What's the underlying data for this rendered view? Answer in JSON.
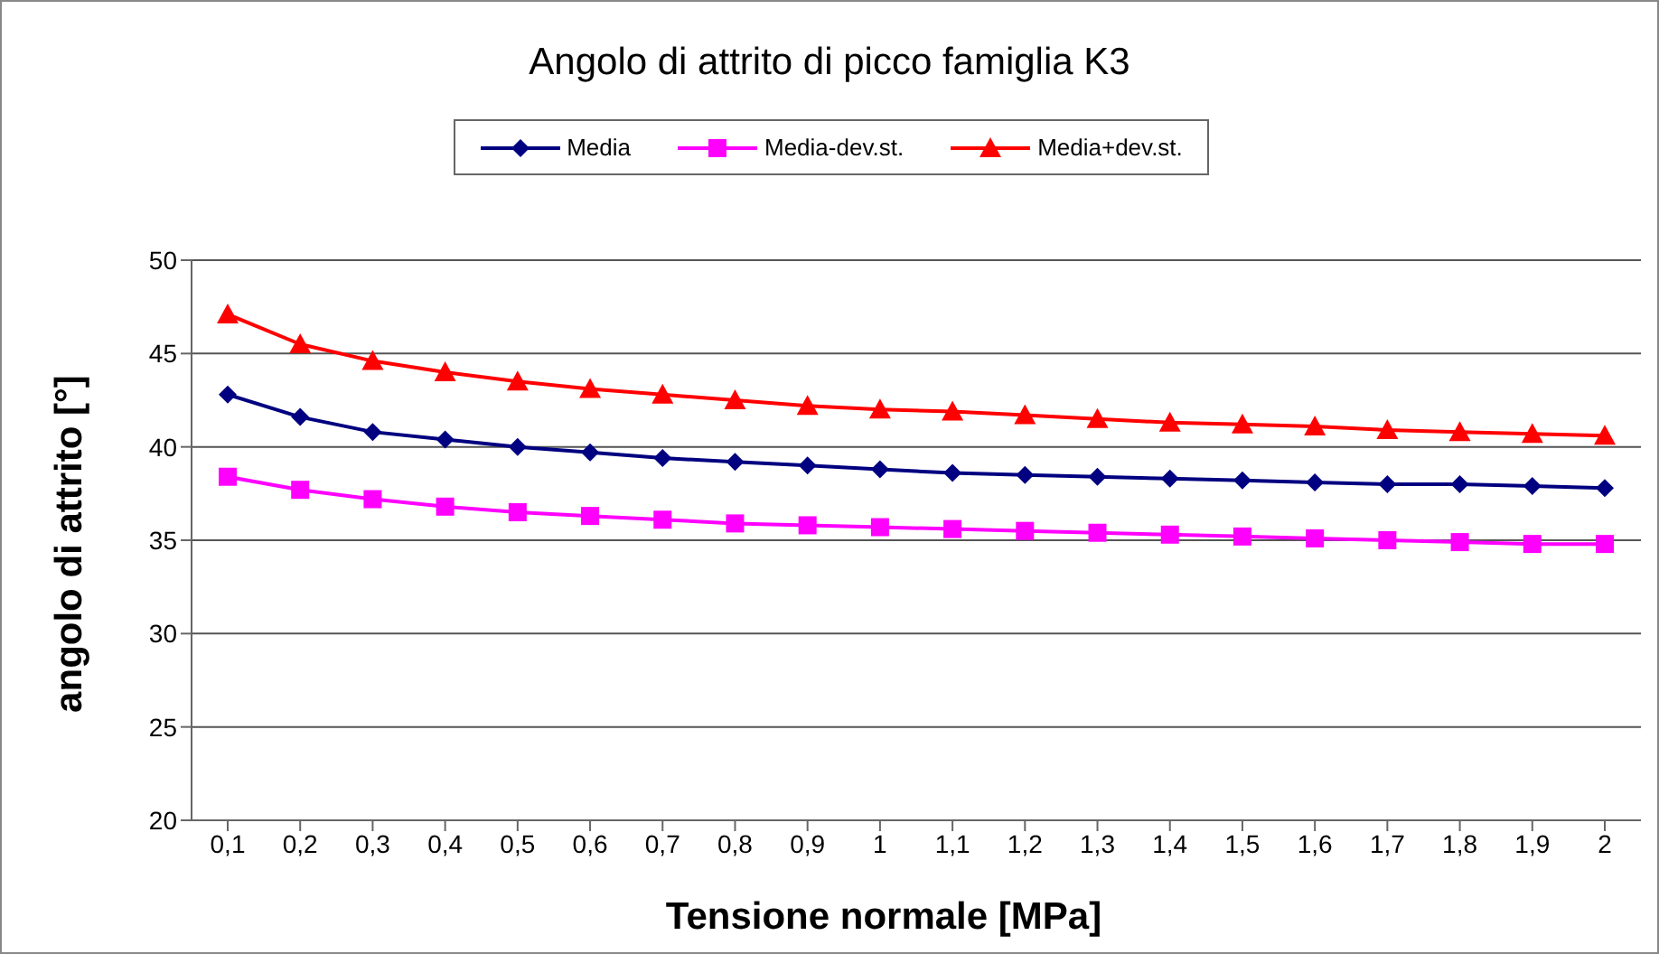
{
  "chart_data": {
    "type": "line",
    "title": "Angolo di attrito di picco famiglia K3",
    "xlabel": "Tensione normale [MPa]",
    "ylabel": "angolo di attrito [°]",
    "categories": [
      "0,1",
      "0,2",
      "0,3",
      "0,4",
      "0,5",
      "0,6",
      "0,7",
      "0,8",
      "0,9",
      "1",
      "1,1",
      "1,2",
      "1,3",
      "1,4",
      "1,5",
      "1,6",
      "1,7",
      "1,8",
      "1,9",
      "2"
    ],
    "series": [
      {
        "name": "Media",
        "color": "#000080",
        "marker": "diamond",
        "values": [
          42.8,
          41.6,
          40.8,
          40.4,
          40.0,
          39.7,
          39.4,
          39.2,
          39.0,
          38.8,
          38.6,
          38.5,
          38.4,
          38.3,
          38.2,
          38.1,
          38.0,
          38.0,
          37.9,
          37.8
        ]
      },
      {
        "name": "Media-dev.st.",
        "color": "#ff00ff",
        "marker": "square",
        "values": [
          38.4,
          37.7,
          37.2,
          36.8,
          36.5,
          36.3,
          36.1,
          35.9,
          35.8,
          35.7,
          35.6,
          35.5,
          35.4,
          35.3,
          35.2,
          35.1,
          35.0,
          34.9,
          34.8,
          34.8
        ]
      },
      {
        "name": "Media+dev.st.",
        "color": "#ff0000",
        "marker": "triangle",
        "values": [
          47.1,
          45.5,
          44.6,
          44.0,
          43.5,
          43.1,
          42.8,
          42.5,
          42.2,
          42.0,
          41.9,
          41.7,
          41.5,
          41.3,
          41.2,
          41.1,
          40.9,
          40.8,
          40.7,
          40.6
        ]
      }
    ],
    "ylim": [
      20,
      50
    ],
    "yticks": [
      20,
      25,
      30,
      35,
      40,
      45,
      50
    ],
    "grid": "y",
    "legend": "top"
  }
}
